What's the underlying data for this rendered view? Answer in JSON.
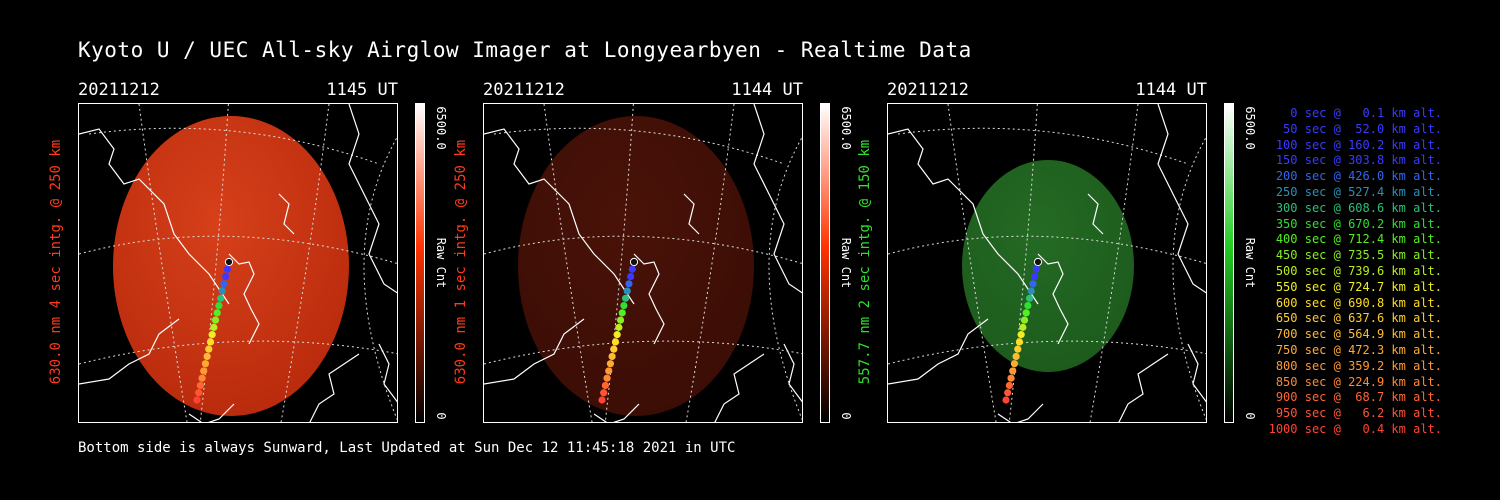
{
  "page": {
    "title": "Kyoto U / UEC All-sky Airglow Imager at Longyearbyen - Realtime Data",
    "footer": "Bottom side is always Sunward, Last Updated at Sun Dec 12 11:45:18 2021 in UTC"
  },
  "panels": [
    {
      "date": "20211212",
      "time": "1145 UT",
      "ylabel": "630.0 nm 4 sec intg. @ 250 km",
      "label_color": "#ff3a1a",
      "cbar_max": "6500.0",
      "cbar_unit": "Raw Cnt",
      "cbar_min": "0",
      "cbar_color": "#ff3300"
    },
    {
      "date": "20211212",
      "time": "1144 UT",
      "ylabel": "630.0 nm 1 sec intg. @ 250 km",
      "label_color": "#ff3a1a",
      "cbar_max": "6500.0",
      "cbar_unit": "Raw Cnt",
      "cbar_min": "0",
      "cbar_color": "#ff3300"
    },
    {
      "date": "20211212",
      "time": "1144 UT",
      "ylabel": "557.7 nm 2 sec intg. @ 150 km",
      "label_color": "#2fe02f",
      "cbar_max": "6500.0",
      "cbar_unit": "Raw Cnt",
      "cbar_min": "0",
      "cbar_color": "#22cc22"
    }
  ],
  "legend": [
    {
      "text": "0 sec @   0.1 km alt.",
      "color": "#3a3aff"
    },
    {
      "text": "50 sec @  52.0 km alt.",
      "color": "#3a3aff"
    },
    {
      "text": "100 sec @ 160.2 km alt.",
      "color": "#3a3aff"
    },
    {
      "text": "150 sec @ 303.8 km alt.",
      "color": "#3a3aff"
    },
    {
      "text": "200 sec @ 426.0 km alt.",
      "color": "#3366ee"
    },
    {
      "text": "250 sec @ 527.4 km alt.",
      "color": "#2a8fb8"
    },
    {
      "text": "300 sec @ 608.6 km alt.",
      "color": "#2bbf7a"
    },
    {
      "text": "350 sec @ 670.2 km alt.",
      "color": "#33dd33"
    },
    {
      "text": "400 sec @ 712.4 km alt.",
      "color": "#55ee22"
    },
    {
      "text": "450 sec @ 735.5 km alt.",
      "color": "#88ee22"
    },
    {
      "text": "500 sec @ 739.6 km alt.",
      "color": "#bbee22"
    },
    {
      "text": "550 sec @ 724.7 km alt.",
      "color": "#eeee22"
    },
    {
      "text": "600 sec @ 690.8 km alt.",
      "color": "#ffdd22"
    },
    {
      "text": "650 sec @ 637.6 km alt.",
      "color": "#ffcc33"
    },
    {
      "text": "700 sec @ 564.9 km alt.",
      "color": "#ffbb33"
    },
    {
      "text": "750 sec @ 472.3 km alt.",
      "color": "#ffaa33"
    },
    {
      "text": "800 sec @ 359.2 km alt.",
      "color": "#ff9933"
    },
    {
      "text": "850 sec @ 224.9 km alt.",
      "color": "#ff8833"
    },
    {
      "text": "900 sec @  68.7 km alt.",
      "color": "#ff6633"
    },
    {
      "text": "950 sec @   6.2 km alt.",
      "color": "#ff5533"
    },
    {
      "text": "1000 sec @   0.4 km alt.",
      "color": "#ff4433"
    }
  ],
  "colors": {
    "red_glow": "#b82a0c",
    "red_glow_dim": "#3a0d05",
    "green_glow": "#1c5a1c"
  }
}
